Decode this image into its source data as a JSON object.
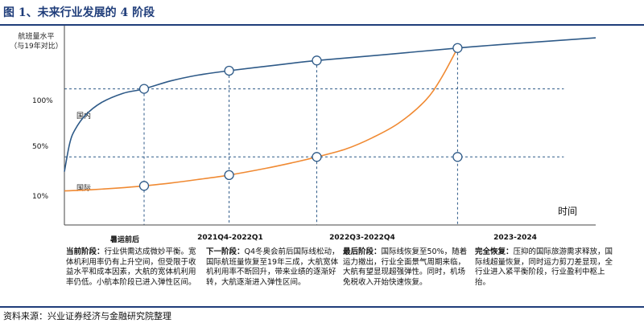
{
  "title": "图 1、未来行业发展的 4 阶段",
  "source": "资料来源：兴业证券经济与金融研究院整理",
  "chart_data": {
    "type": "line",
    "ylabel_lines": [
      "航班量水平",
      "（与19年对比）"
    ],
    "xlabel": "时间",
    "y_ticks": [
      {
        "label": "100%",
        "value": 100
      },
      {
        "label": "50%",
        "value": 50
      },
      {
        "label": "10%",
        "value": 10
      }
    ],
    "ylim": [
      -20,
      150
    ],
    "xlim": [
      0,
      100
    ],
    "grid": false,
    "legend": "none",
    "phases": [
      {
        "category": "暑运前后",
        "x": 15,
        "title": "当前阶段：",
        "text": "行业供需达成微妙平衡。宽体机利用率仍有上升空间，但受限于收益水平和成本因素，大航的宽体机利用率仍低。小航本阶段已进入弹性区间。"
      },
      {
        "category": "2021Q4-2022Q1",
        "x": 31,
        "title": "下一阶段：",
        "text": "Q4冬奥会前后国际线松动，国际航班量恢复至19年三成，大航宽体机利用率不断回升，带来业绩的逐渐好转，大航逐渐进入弹性区间。"
      },
      {
        "category": "2022Q3-2022Q4",
        "x": 47.5,
        "title": "最后阶段：",
        "text": "国际线恢复至50%，随着运力撤出，行业全面景气周期来临，大航有望显现超强弹性。同时，机场免税收入开始快速恢复。"
      },
      {
        "category": "2023-2024",
        "x": 74,
        "title": "完全恢复：",
        "text": "压抑的国际旅游需求释放，国际线超量恢复，同时运力剪刀差显现，全行业进入紧平衡阶段，行业盈利中枢上抬。"
      }
    ],
    "series": [
      {
        "name": "国内",
        "color": "#2e5a88",
        "points": [
          [
            0,
            27
          ],
          [
            1,
            52
          ],
          [
            2,
            64
          ],
          [
            4,
            77
          ],
          [
            7,
            88
          ],
          [
            11,
            96
          ],
          [
            15,
            100
          ],
          [
            20,
            107
          ],
          [
            25,
            112
          ],
          [
            31,
            116
          ],
          [
            40,
            121
          ],
          [
            47.5,
            125
          ],
          [
            60,
            130
          ],
          [
            74,
            136
          ],
          [
            85,
            140
          ],
          [
            100,
            145
          ]
        ],
        "markers": [
          15,
          31,
          47.5,
          74
        ],
        "marker_values": [
          100,
          116,
          125,
          136
        ]
      },
      {
        "name": "国际",
        "color": "#f08a33",
        "points": [
          [
            0,
            10
          ],
          [
            5,
            11
          ],
          [
            10,
            12.5
          ],
          [
            15,
            14.5
          ],
          [
            20,
            17
          ],
          [
            25,
            20
          ],
          [
            31,
            24
          ],
          [
            38,
            30
          ],
          [
            43,
            35
          ],
          [
            47.5,
            40
          ],
          [
            53,
            47
          ],
          [
            58,
            57
          ],
          [
            63,
            70
          ],
          [
            68,
            90
          ],
          [
            71,
            110
          ],
          [
            74,
            136
          ]
        ],
        "markers": [
          15,
          31,
          47.5
        ],
        "marker_values": [
          14.5,
          24,
          40
        ]
      }
    ],
    "extra_markers": [
      {
        "x": 74,
        "y": 40
      }
    ],
    "reference_levels": [
      100,
      40
    ]
  }
}
